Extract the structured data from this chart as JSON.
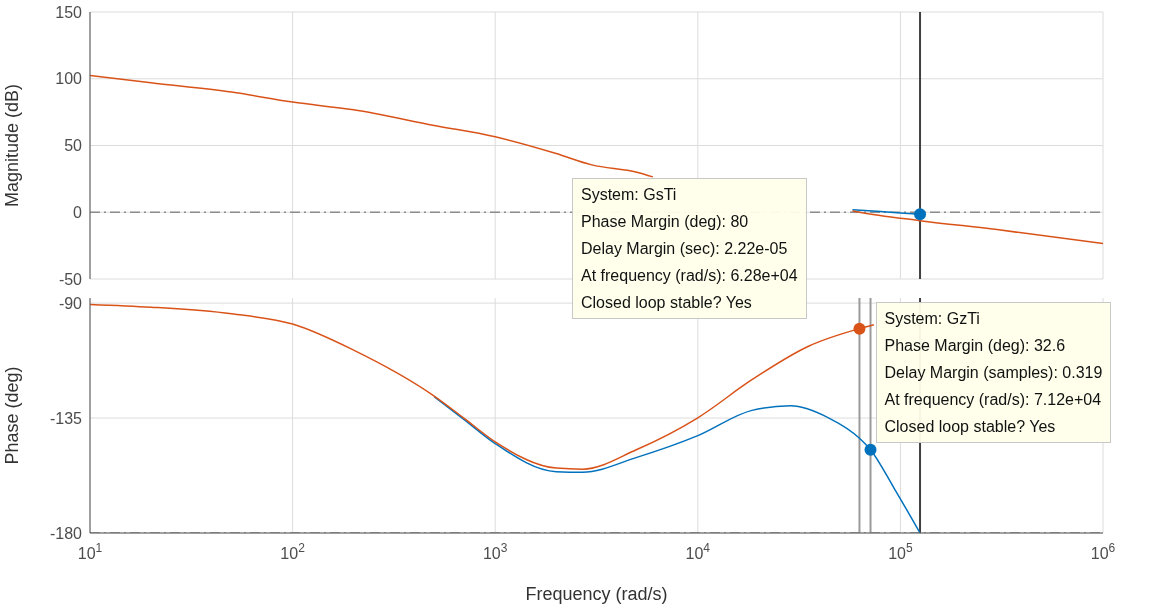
{
  "chart_data": [
    {
      "type": "line",
      "ylabel": "Magnitude (dB)",
      "xlim": [
        10,
        1000000
      ],
      "ylim": [
        -50,
        150
      ],
      "log": "x",
      "xticks": [
        10,
        100,
        1000,
        10000,
        100000,
        1000000
      ],
      "yticks": [
        -50,
        0,
        50,
        100,
        150
      ],
      "tick_labels": "y",
      "grid": true,
      "legend": false,
      "marker": "none",
      "series": [
        {
          "color": "#0072bd",
          "x": [
            58000,
            80000,
            100000,
            125000
          ],
          "values": [
            1.8,
            0.5,
            -0.6,
            -1.5
          ]
        },
        {
          "color": "#d95319",
          "x": [
            10,
            20,
            50,
            100,
            200,
            500,
            1000,
            2000,
            3000,
            5000,
            6000,
            20000,
            58000,
            62800,
            125000,
            300000,
            1000000
          ],
          "values": [
            102.5,
            97,
            90,
            82.5,
            76.7,
            65,
            56.5,
            44,
            35.5,
            30,
            26.5,
            null,
            1,
            0,
            -6.3,
            -13,
            -23.5
          ]
        },
        {
          "type": "scatter",
          "marker": "circle",
          "color": "#0072bd",
          "x": [
            125000
          ],
          "values": [
            -1.5
          ]
        }
      ],
      "ref_lines": [
        {
          "axis": "y",
          "value": 0,
          "color": "#8c8c8c",
          "line_style": "dashed"
        },
        {
          "axis": "x",
          "value": 125000,
          "color": "#404040",
          "line_style": "solid"
        }
      ]
    },
    {
      "type": "line",
      "xlabel": "Frequency  (rad/s)",
      "ylabel": "Phase (deg)",
      "xlim": [
        10,
        1000000
      ],
      "ylim": [
        -180,
        -88
      ],
      "log": "x",
      "xticks": [
        {
          "value": 10,
          "label": "10$^{1}$"
        },
        {
          "value": 100,
          "label": "10$^{2}$"
        },
        {
          "value": 1000,
          "label": "10$^{3}$"
        },
        {
          "value": 10000,
          "label": "10$^{4}$"
        },
        {
          "value": 100000,
          "label": "10$^{5}$"
        },
        {
          "value": 1000000,
          "label": "10$^{6}$"
        }
      ],
      "yticks": [
        -180,
        -135,
        -90
      ],
      "grid": true,
      "legend": false,
      "marker": "none",
      "series": [
        {
          "color": "#0072bd",
          "x": [
            500,
            700,
            1000,
            2000,
            2700,
            5000,
            10000,
            18500,
            28700,
            44400,
            62800,
            71200,
            93000,
            125000
          ],
          "values": [
            -126.6,
            -135.5,
            -145,
            -156,
            -156.2,
            -150.4,
            -141.9,
            -132,
            -130.2,
            -135,
            -142.9,
            -147.4,
            -162.4,
            -180
          ]
        },
        {
          "color": "#d95319",
          "x": [
            10,
            20,
            50,
            100,
            200,
            500,
            700,
            1000,
            2000,
            2700,
            5000,
            10000,
            18500,
            35400,
            62800,
            74000
          ],
          "values": [
            -90.5,
            -91.6,
            -94.2,
            -98.2,
            -108.4,
            -126.4,
            -135,
            -144.3,
            -154.6,
            -155,
            -147.3,
            -134.9,
            -120,
            -106.8,
            -100,
            -98.5
          ]
        },
        {
          "type": "scatter",
          "marker": "circle",
          "color": "#d95319",
          "x": [
            62800
          ],
          "values": [
            -100
          ]
        },
        {
          "type": "scatter",
          "marker": "circle",
          "color": "#0072bd",
          "x": [
            71200
          ],
          "values": [
            -147.4
          ]
        }
      ],
      "ref_lines": [
        {
          "axis": "y",
          "value": -180,
          "color": "#8c8c8c",
          "line_style": "dashed"
        },
        {
          "axis": "x",
          "value": 125000,
          "color": "#404040",
          "line_style": "solid"
        },
        {
          "axis": "x",
          "value": 62800,
          "color": "#9a9a9a",
          "line_style": "solid"
        },
        {
          "axis": "x",
          "value": 71200,
          "color": "#9a9a9a",
          "line_style": "solid"
        }
      ],
      "annotations": [
        "System: GsTi\nPhase Margin (deg): 80\nDelay Margin (sec): 2.22e-05\nAt frequency (rad/s): 6.28e+04\nClosed loop stable? Yes",
        {
          "text": "System: GzTi\nPhase Margin (deg): 32.6\nDelay Margin (samples): 0.319\nAt frequency (rad/s): 7.12e+04\nClosed loop stable? Yes",
          "x": 71200,
          "y": -147.4
        }
      ]
    }
  ]
}
